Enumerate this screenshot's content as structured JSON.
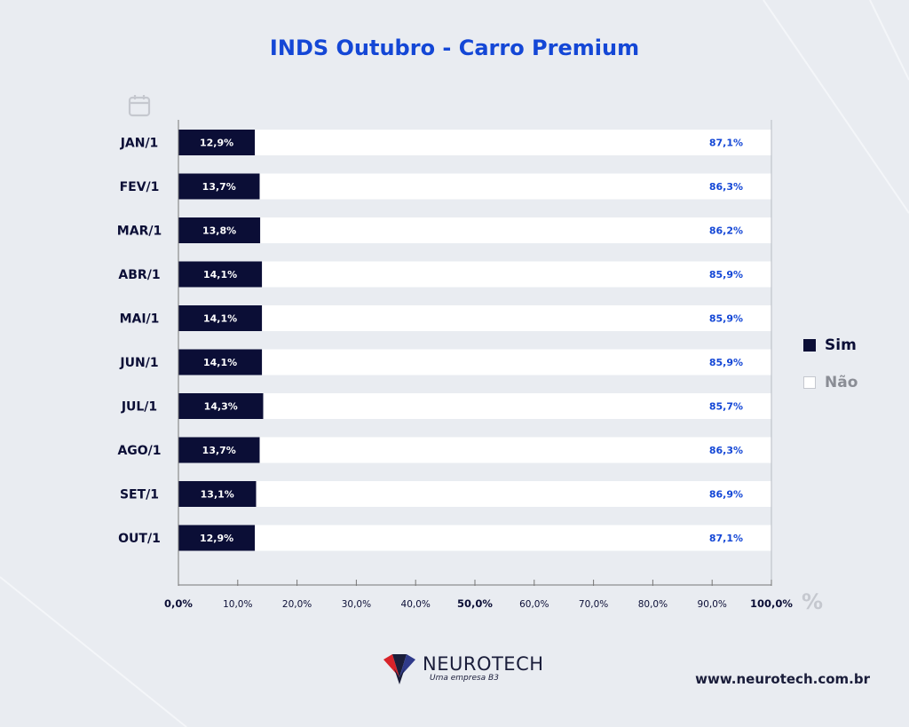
{
  "colors": {
    "sim": "#0b0e36",
    "nao": "#ffffff",
    "title": "#1447d6",
    "nao_label": "#1447d6",
    "axis": "#777777",
    "background": "#e9ecf1"
  },
  "icons": {
    "calendar": "calendar-icon",
    "logo": "neurotech-logo-icon"
  },
  "chart_data": {
    "type": "bar",
    "orientation": "horizontal",
    "stacked": true,
    "title": "INDS Outubro - Carro Premium",
    "categories": [
      "JAN/1",
      "FEV/1",
      "MAR/1",
      "ABR/1",
      "MAI/1",
      "JUN/1",
      "JUL/1",
      "AGO/1",
      "SET/1",
      "OUT/1"
    ],
    "series": [
      {
        "name": "Sim",
        "values": [
          12.9,
          13.7,
          13.8,
          14.1,
          14.1,
          14.1,
          14.3,
          13.7,
          13.1,
          12.9
        ],
        "labels": [
          "12,9%",
          "13,7%",
          "13,8%",
          "14,1%",
          "14,1%",
          "14,1%",
          "14,3%",
          "13,7%",
          "13,1%",
          "12,9%"
        ]
      },
      {
        "name": "Não",
        "values": [
          87.1,
          86.3,
          86.2,
          85.9,
          85.9,
          85.9,
          85.7,
          86.3,
          86.9,
          87.1
        ],
        "labels": [
          "87,1%",
          "86,3%",
          "86,2%",
          "85,9%",
          "85,9%",
          "85,9%",
          "85,7%",
          "86,3%",
          "86,9%",
          "87,1%"
        ]
      }
    ],
    "xlim": [
      0,
      100
    ],
    "xticks": [
      0,
      10,
      20,
      30,
      40,
      50,
      60,
      70,
      80,
      90,
      100
    ],
    "xtick_labels": [
      "0,0%",
      "10,0%",
      "20,0%",
      "30,0%",
      "40,0%",
      "50,0%",
      "60,0%",
      "70,0%",
      "80,0%",
      "90,0%",
      "100,0%"
    ],
    "xlabel": "%",
    "legend": "right",
    "grid": false
  },
  "footer": {
    "brand": "NEUROTECH",
    "tagline": "Uma empresa B3",
    "website": "www.neurotech.com.br"
  }
}
